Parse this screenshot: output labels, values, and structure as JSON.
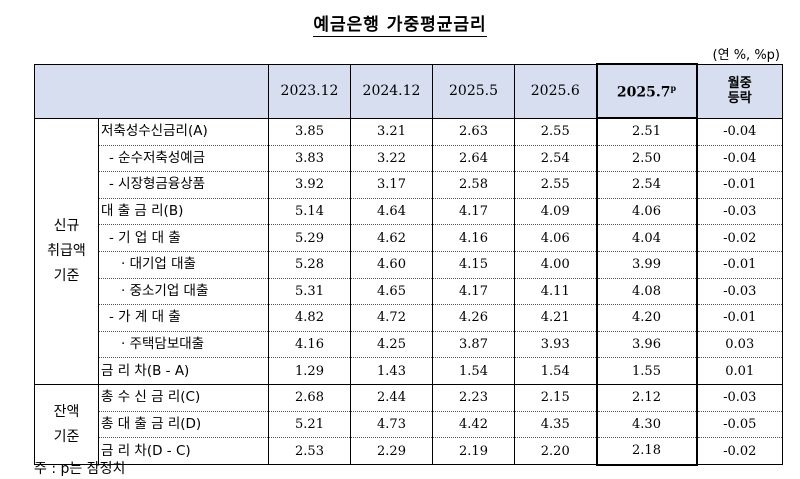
{
  "title": "예금은행 가중평균금리",
  "unit": "(연 %, %p)",
  "header": {
    "columns": [
      "2023.12",
      "2024.12",
      "2025.5",
      "2025.6"
    ],
    "highlight_column": "2025.7",
    "highlight_sup": "p",
    "change_line1": "월중",
    "change_line2": "등락"
  },
  "groups": {
    "new": {
      "line1": "신규",
      "line2": "취급액",
      "line3": "기준"
    },
    "balance": {
      "line1": "잔액",
      "line2": "기준"
    }
  },
  "rows": [
    {
      "label": "저축성수신금리(A)",
      "values": [
        "3.85",
        "3.21",
        "2.63",
        "2.55",
        "2.51",
        "-0.04"
      ]
    },
    {
      "label": "- 순수저축성예금",
      "values": [
        "3.83",
        "3.22",
        "2.64",
        "2.54",
        "2.50",
        "-0.04"
      ]
    },
    {
      "label": "- 시장형금융상품",
      "values": [
        "3.92",
        "3.17",
        "2.58",
        "2.55",
        "2.54",
        "-0.01"
      ]
    },
    {
      "label": "대 출 금 리(B)",
      "values": [
        "5.14",
        "4.64",
        "4.17",
        "4.09",
        "4.06",
        "-0.03"
      ]
    },
    {
      "label": "- 기 업 대 출",
      "values": [
        "5.29",
        "4.62",
        "4.16",
        "4.06",
        "4.04",
        "-0.02"
      ]
    },
    {
      "label": "· 대기업 대출",
      "values": [
        "5.28",
        "4.60",
        "4.15",
        "4.00",
        "3.99",
        "-0.01"
      ]
    },
    {
      "label": "· 중소기업 대출",
      "values": [
        "5.31",
        "4.65",
        "4.17",
        "4.11",
        "4.08",
        "-0.03"
      ]
    },
    {
      "label": "- 가 계 대 출",
      "values": [
        "4.82",
        "4.72",
        "4.26",
        "4.21",
        "4.20",
        "-0.01"
      ]
    },
    {
      "label": "· 주택담보대출",
      "values": [
        "4.16",
        "4.25",
        "3.87",
        "3.93",
        "3.96",
        "0.03"
      ]
    },
    {
      "label": "금 리 차(B - A)",
      "values": [
        "1.29",
        "1.43",
        "1.54",
        "1.54",
        "1.55",
        "0.01"
      ]
    },
    {
      "label": "총 수 신 금 리(C)",
      "values": [
        "2.68",
        "2.44",
        "2.23",
        "2.15",
        "2.12",
        "-0.03"
      ]
    },
    {
      "label": "총 대 출 금 리(D)",
      "values": [
        "5.21",
        "4.73",
        "4.42",
        "4.35",
        "4.30",
        "-0.05"
      ]
    },
    {
      "label": "금 리 차(D - C)",
      "values": [
        "2.53",
        "2.29",
        "2.19",
        "2.20",
        "2.18",
        "-0.02"
      ]
    }
  ],
  "note": "주 : p는 잠정치"
}
